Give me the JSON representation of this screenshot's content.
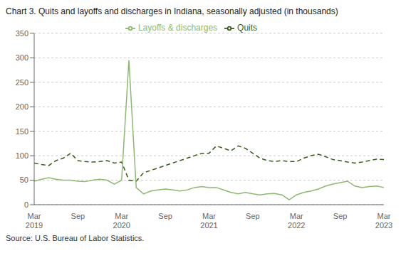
{
  "chart_data": {
    "type": "line",
    "title": "Chart 3. Quits and layoffs and discharges in Indiana, seasonally adjusted (in thousands)",
    "source": "Source: U.S. Bureau of Labor Statistics.",
    "categories": [
      "Mar 2019",
      null,
      null,
      null,
      null,
      null,
      "Sep",
      null,
      null,
      null,
      null,
      null,
      "Mar 2020",
      null,
      null,
      null,
      null,
      null,
      "Sep",
      null,
      null,
      null,
      null,
      null,
      "Mar 2021",
      null,
      null,
      null,
      null,
      null,
      "Sep",
      null,
      null,
      null,
      null,
      null,
      "Mar 2022",
      null,
      null,
      null,
      null,
      null,
      "Sep",
      null,
      null,
      null,
      null,
      null,
      "Mar 2023"
    ],
    "series": [
      {
        "name": "Quits",
        "color": "#3a5c1a",
        "line_style": "dashed",
        "values": [
          85,
          82,
          80,
          90,
          95,
          105,
          90,
          88,
          87,
          88,
          90,
          85,
          87,
          50,
          48,
          65,
          70,
          75,
          80,
          85,
          90,
          95,
          100,
          105,
          105,
          120,
          115,
          110,
          120,
          115,
          105,
          95,
          90,
          88,
          90,
          88,
          88,
          95,
          100,
          103,
          98,
          92,
          90,
          87,
          85,
          87,
          90,
          93,
          92
        ]
      },
      {
        "name": "Layoffs & discharges",
        "color": "#8db870",
        "line_style": "solid",
        "values": [
          48,
          52,
          55,
          52,
          50,
          50,
          48,
          47,
          50,
          52,
          50,
          42,
          50,
          295,
          35,
          22,
          28,
          30,
          32,
          30,
          28,
          30,
          35,
          37,
          35,
          35,
          30,
          25,
          22,
          25,
          22,
          20,
          22,
          23,
          20,
          10,
          20,
          25,
          28,
          32,
          38,
          42,
          45,
          48,
          38,
          35,
          37,
          38,
          35
        ]
      }
    ],
    "ylim": [
      0,
      350
    ],
    "yticks": [
      0,
      50,
      100,
      150,
      200,
      250,
      300,
      350
    ],
    "grid": true,
    "legend": "top"
  }
}
